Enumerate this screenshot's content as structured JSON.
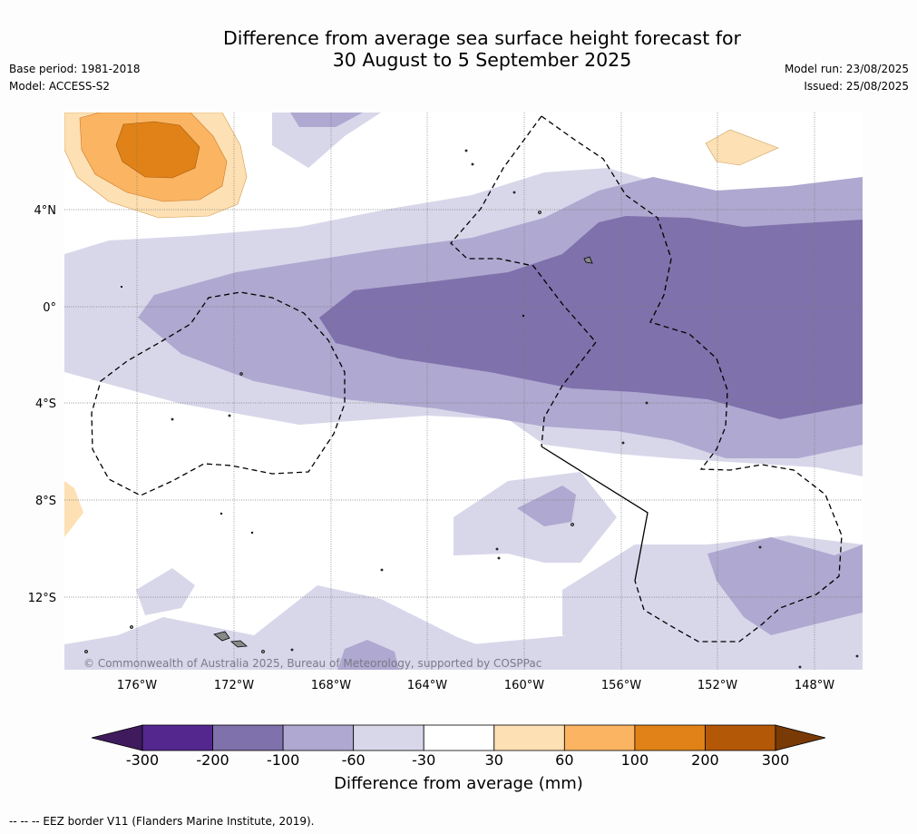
{
  "title": {
    "line1": "Difference from average sea surface height forecast for",
    "line2": "30 August to 5 September 2025"
  },
  "meta_left": {
    "base_period": "Base period: 1981-2018",
    "model": "Model: ACCESS-S2"
  },
  "meta_right": {
    "model_run": "Model run: 23/08/2025",
    "issued": "Issued: 25/08/2025"
  },
  "map": {
    "lat_labels": [
      "4°N",
      "0°",
      "4°S",
      "8°S",
      "12°S"
    ],
    "lon_labels": [
      "176°W",
      "172°W",
      "168°W",
      "164°W",
      "160°W",
      "156°W",
      "152°W",
      "148°W"
    ],
    "copyright": "© Commonwealth of Australia 2025, Bureau of Meteorology, supported by COSPPac"
  },
  "colorbar": {
    "ticks": [
      "-300",
      "-200",
      "-100",
      "-60",
      "-30",
      "30",
      "60",
      "100",
      "200",
      "300"
    ],
    "colors": [
      "#3f1a5c",
      "#54278f",
      "#7f71ab",
      "#afa8d0",
      "#d8d7ea",
      "#ffffff",
      "#fde0b3",
      "#fbb461",
      "#e08217",
      "#b35806",
      "#7a3a05"
    ],
    "title": "Difference from average (mm)"
  },
  "footer": "--  --  -- EEZ border V11 (Flanders Marine Institute, 2019)."
}
